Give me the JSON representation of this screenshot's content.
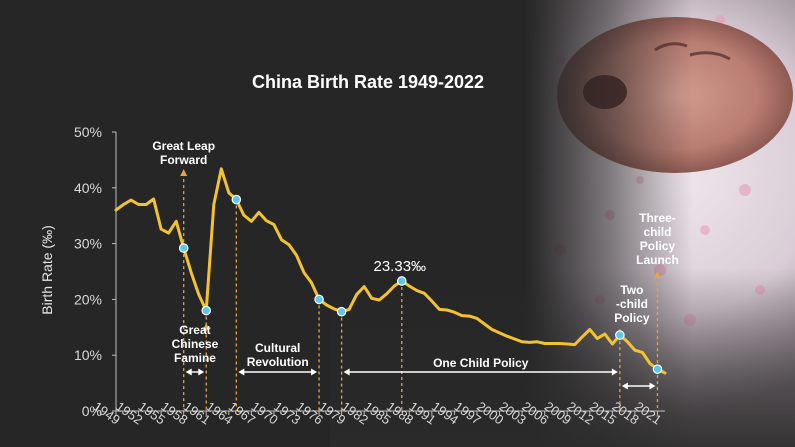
{
  "colors": {
    "background": "#262626",
    "line": "#f2c230",
    "marker_fill": "#5fc7e6",
    "guide": "#e8a33c",
    "text": "#ffffff",
    "axis_text": "#d9d9d9"
  },
  "chart_data": {
    "type": "line",
    "title": "China Birth Rate 1949-2022",
    "xlabel": "",
    "ylabel": "Birth Rate (‰)",
    "ylim": [
      0,
      50
    ],
    "xlim": [
      1949,
      2022
    ],
    "y_ticks": [
      "0%",
      "10%",
      "20%",
      "30%",
      "40%",
      "50%"
    ],
    "x_ticks": [
      "1949",
      "1952",
      "1955",
      "1958",
      "1961",
      "1964",
      "1967",
      "1970",
      "1973",
      "1976",
      "1979",
      "1982",
      "1985",
      "1988",
      "1991",
      "1994",
      "1997",
      "2000",
      "2003",
      "2006",
      "2009",
      "2012",
      "2015",
      "2018",
      "2021"
    ],
    "grid": false,
    "x": [
      1949,
      1950,
      1951,
      1952,
      1953,
      1954,
      1955,
      1956,
      1957,
      1958,
      1959,
      1960,
      1961,
      1962,
      1963,
      1964,
      1965,
      1966,
      1967,
      1968,
      1969,
      1970,
      1971,
      1972,
      1973,
      1974,
      1975,
      1976,
      1977,
      1978,
      1979,
      1980,
      1981,
      1982,
      1983,
      1984,
      1985,
      1986,
      1987,
      1988,
      1989,
      1990,
      1991,
      1992,
      1993,
      1994,
      1995,
      1996,
      1997,
      1998,
      1999,
      2000,
      2001,
      2002,
      2003,
      2004,
      2005,
      2006,
      2007,
      2008,
      2009,
      2010,
      2011,
      2012,
      2013,
      2014,
      2015,
      2016,
      2017,
      2018,
      2019,
      2020,
      2021,
      2022
    ],
    "y": [
      36.0,
      37.0,
      37.8,
      37.0,
      37.0,
      38.0,
      32.6,
      31.9,
      34.0,
      29.2,
      24.8,
      20.9,
      18.0,
      37.0,
      43.4,
      39.1,
      37.9,
      35.1,
      34.0,
      35.6,
      34.1,
      33.4,
      30.7,
      29.8,
      27.9,
      24.8,
      23.0,
      20.0,
      19.0,
      18.3,
      17.8,
      18.2,
      20.9,
      22.3,
      20.2,
      19.9,
      21.0,
      22.4,
      23.3,
      22.4,
      21.6,
      21.1,
      19.7,
      18.2,
      18.1,
      17.7,
      17.1,
      17.0,
      16.6,
      15.6,
      14.6,
      14.0,
      13.4,
      12.9,
      12.4,
      12.3,
      12.4,
      12.1,
      12.1,
      12.1,
      12.0,
      11.9,
      13.3,
      14.6,
      13.0,
      13.8,
      12.0,
      13.6,
      12.4,
      10.9,
      10.5,
      8.5,
      7.5,
      6.8
    ],
    "highlight_points": [
      1958,
      1961,
      1965,
      1976,
      1979,
      1987,
      2016,
      2021
    ],
    "annotations": [
      {
        "label": "23.33‰",
        "x": 1987,
        "y": 23.33
      },
      {
        "label": "Great Leap Forward",
        "x": 1958,
        "lines": [
          "Great Leap",
          "Forward"
        ]
      },
      {
        "label": "Great Chinese Famine",
        "x": 1960,
        "lines": [
          "Great",
          "Chinese",
          "Famine"
        ]
      },
      {
        "label": "Cultural Revolution",
        "x": 1971,
        "lines": [
          "Cultural",
          "Revolution"
        ]
      },
      {
        "label": "One Child Policy",
        "x": 1998,
        "lines": [
          "One Child  Policy"
        ]
      },
      {
        "label": "Two-child Policy",
        "x": 2017,
        "lines": [
          "Two",
          "-child",
          "Policy"
        ]
      },
      {
        "label": "Three-child Policy Launch",
        "x": 2021,
        "lines": [
          "Three-",
          "child",
          "Policy",
          "Launch"
        ]
      }
    ],
    "spans": [
      {
        "from": 1958,
        "to": 1961
      },
      {
        "from": 1965,
        "to": 1976
      },
      {
        "from": 1979,
        "to": 2016
      },
      {
        "from": 2016,
        "to": 2021
      }
    ]
  }
}
